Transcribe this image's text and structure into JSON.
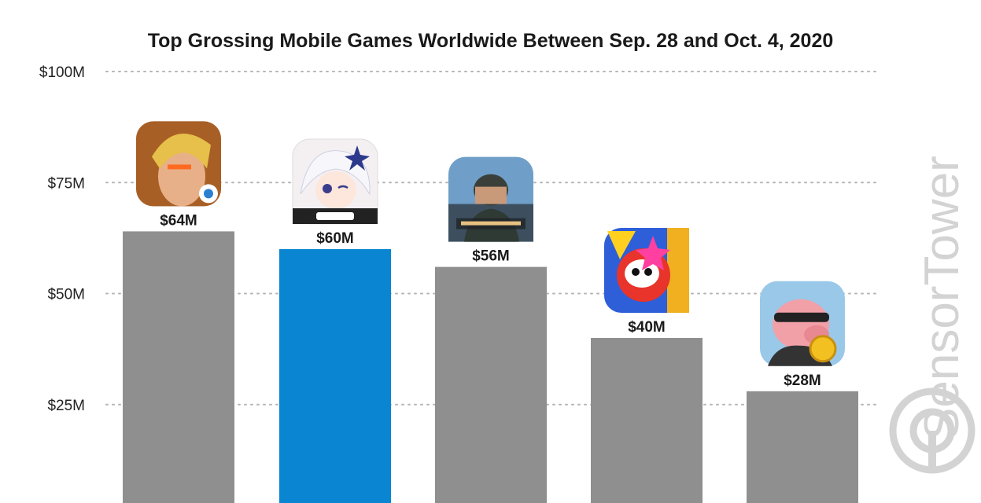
{
  "chart_data": {
    "type": "bar",
    "title": "Top Grossing Mobile Games Worldwide Between Sep. 28 and Oct. 4, 2020",
    "xlabel": "",
    "ylabel": "",
    "categories": [
      "Honor of Kings",
      "Genshin Impact",
      "PUBG Mobile",
      "Monster Strike",
      "Coin Master"
    ],
    "values": [
      64,
      60,
      56,
      40,
      28
    ],
    "value_labels": [
      "$64M",
      "$60M",
      "$56M",
      "$40M",
      "$28M"
    ],
    "y_ticks": [
      25,
      50,
      75,
      100
    ],
    "y_tick_labels": [
      "$25M",
      "$50M",
      "$75M",
      "$100M"
    ],
    "ylim": [
      0,
      100
    ],
    "grid": "horizontal dotted",
    "legend": "none",
    "colors": {
      "default_bar": "#8f8f8f",
      "highlight_bar": "#0a85d1",
      "grid": "#b5b5b5"
    },
    "highlight_index": 1,
    "icons": [
      "honor-of-kings-app-icon",
      "genshin-impact-app-icon",
      "pubg-mobile-app-icon",
      "monster-strike-app-icon",
      "coin-master-app-icon"
    ]
  },
  "watermark": {
    "text": "SensorTower",
    "color": "#d3d3d3"
  }
}
